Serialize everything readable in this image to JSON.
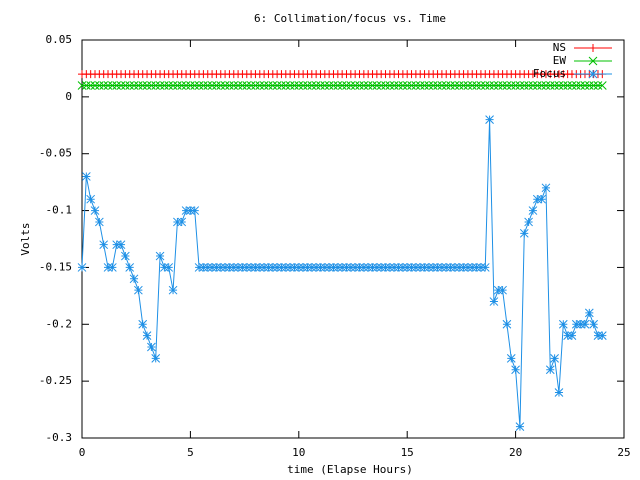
{
  "chart_data": {
    "type": "line",
    "title": "6: Collimation/focus vs. Time",
    "x_label": "time (Elapse Hours)",
    "y_label": "Volts",
    "xlim": [
      0,
      25
    ],
    "xticks": [
      0,
      5,
      10,
      15,
      20,
      25
    ],
    "ylim": [
      -0.3,
      0.05
    ],
    "yticks": [
      0.05,
      0,
      -0.05,
      -0.1,
      -0.15,
      -0.2,
      -0.25,
      -0.3
    ],
    "legend": "top-right",
    "x": [
      0,
      0.2,
      0.4,
      0.6,
      0.8,
      1,
      1.2,
      1.4,
      1.6,
      1.8,
      2,
      2.2,
      2.4,
      2.6,
      2.8,
      3,
      3.2,
      3.4,
      3.6,
      3.8,
      4,
      4.2,
      4.4,
      4.6,
      4.8,
      5,
      5.2,
      5.4,
      5.6,
      5.8,
      6,
      6.2,
      6.4,
      6.6,
      6.8,
      7,
      7.2,
      7.4,
      7.6,
      7.8,
      8,
      8.2,
      8.4,
      8.6,
      8.8,
      9,
      9.2,
      9.4,
      9.6,
      9.8,
      10,
      10.2,
      10.4,
      10.6,
      10.8,
      11,
      11.2,
      11.4,
      11.6,
      11.8,
      12,
      12.2,
      12.4,
      12.6,
      12.8,
      13,
      13.2,
      13.4,
      13.6,
      13.8,
      14,
      14.2,
      14.4,
      14.6,
      14.8,
      15,
      15.2,
      15.4,
      15.6,
      15.8,
      16,
      16.2,
      16.4,
      16.6,
      16.8,
      17,
      17.2,
      17.4,
      17.6,
      17.8,
      18,
      18.2,
      18.4,
      18.6,
      18.8,
      19,
      19.2,
      19.4,
      19.6,
      19.8,
      20,
      20.2,
      20.4,
      20.6,
      20.8,
      21,
      21.2,
      21.4,
      21.6,
      21.8,
      22,
      22.2,
      22.4,
      22.6,
      22.8,
      23,
      23.2,
      23.4,
      23.6,
      23.8,
      24
    ],
    "series": [
      {
        "name": "NS",
        "color": "#ff0000",
        "marker": "plus",
        "values": [
          0.02,
          0.02,
          0.02,
          0.02,
          0.02,
          0.02,
          0.02,
          0.02,
          0.02,
          0.02,
          0.02,
          0.02,
          0.02,
          0.02,
          0.02,
          0.02,
          0.02,
          0.02,
          0.02,
          0.02,
          0.02,
          0.02,
          0.02,
          0.02,
          0.02,
          0.02,
          0.02,
          0.02,
          0.02,
          0.02,
          0.02,
          0.02,
          0.02,
          0.02,
          0.02,
          0.02,
          0.02,
          0.02,
          0.02,
          0.02,
          0.02,
          0.02,
          0.02,
          0.02,
          0.02,
          0.02,
          0.02,
          0.02,
          0.02,
          0.02,
          0.02,
          0.02,
          0.02,
          0.02,
          0.02,
          0.02,
          0.02,
          0.02,
          0.02,
          0.02,
          0.02,
          0.02,
          0.02,
          0.02,
          0.02,
          0.02,
          0.02,
          0.02,
          0.02,
          0.02,
          0.02,
          0.02,
          0.02,
          0.02,
          0.02,
          0.02,
          0.02,
          0.02,
          0.02,
          0.02,
          0.02,
          0.02,
          0.02,
          0.02,
          0.02,
          0.02,
          0.02,
          0.02,
          0.02,
          0.02,
          0.02,
          0.02,
          0.02,
          0.02,
          0.02,
          0.02,
          0.02,
          0.02,
          0.02,
          0.02,
          0.02,
          0.02,
          0.02,
          0.02,
          0.02,
          0.02,
          0.02,
          0.02,
          0.02,
          0.02,
          0.02,
          0.02,
          0.02,
          0.02,
          0.02,
          0.02,
          0.02,
          0.02,
          0.02,
          0.02,
          0.02
        ]
      },
      {
        "name": "EW",
        "color": "#00c000",
        "marker": "cross",
        "values": [
          0.01,
          0.01,
          0.01,
          0.01,
          0.01,
          0.01,
          0.01,
          0.01,
          0.01,
          0.01,
          0.01,
          0.01,
          0.01,
          0.01,
          0.01,
          0.01,
          0.01,
          0.01,
          0.01,
          0.01,
          0.01,
          0.01,
          0.01,
          0.01,
          0.01,
          0.01,
          0.01,
          0.01,
          0.01,
          0.01,
          0.01,
          0.01,
          0.01,
          0.01,
          0.01,
          0.01,
          0.01,
          0.01,
          0.01,
          0.01,
          0.01,
          0.01,
          0.01,
          0.01,
          0.01,
          0.01,
          0.01,
          0.01,
          0.01,
          0.01,
          0.01,
          0.01,
          0.01,
          0.01,
          0.01,
          0.01,
          0.01,
          0.01,
          0.01,
          0.01,
          0.01,
          0.01,
          0.01,
          0.01,
          0.01,
          0.01,
          0.01,
          0.01,
          0.01,
          0.01,
          0.01,
          0.01,
          0.01,
          0.01,
          0.01,
          0.01,
          0.01,
          0.01,
          0.01,
          0.01,
          0.01,
          0.01,
          0.01,
          0.01,
          0.01,
          0.01,
          0.01,
          0.01,
          0.01,
          0.01,
          0.01,
          0.01,
          0.01,
          0.01,
          0.01,
          0.01,
          0.01,
          0.01,
          0.01,
          0.01,
          0.01,
          0.01,
          0.01,
          0.01,
          0.01,
          0.01,
          0.01,
          0.01,
          0.01,
          0.01,
          0.01,
          0.01,
          0.01,
          0.01,
          0.01,
          0.01,
          0.01,
          0.01,
          0.01,
          0.01,
          0.01
        ]
      },
      {
        "name": "Focus",
        "color": "#1e90e6",
        "marker": "star",
        "values": [
          -0.15,
          -0.07,
          -0.09,
          -0.1,
          -0.11,
          -0.13,
          -0.15,
          -0.15,
          -0.13,
          -0.13,
          -0.14,
          -0.15,
          -0.16,
          -0.17,
          -0.2,
          -0.21,
          -0.22,
          -0.23,
          -0.14,
          -0.15,
          -0.15,
          -0.17,
          -0.11,
          -0.11,
          -0.1,
          -0.1,
          -0.1,
          -0.15,
          -0.15,
          -0.15,
          -0.15,
          -0.15,
          -0.15,
          -0.15,
          -0.15,
          -0.15,
          -0.15,
          -0.15,
          -0.15,
          -0.15,
          -0.15,
          -0.15,
          -0.15,
          -0.15,
          -0.15,
          -0.15,
          -0.15,
          -0.15,
          -0.15,
          -0.15,
          -0.15,
          -0.15,
          -0.15,
          -0.15,
          -0.15,
          -0.15,
          -0.15,
          -0.15,
          -0.15,
          -0.15,
          -0.15,
          -0.15,
          -0.15,
          -0.15,
          -0.15,
          -0.15,
          -0.15,
          -0.15,
          -0.15,
          -0.15,
          -0.15,
          -0.15,
          -0.15,
          -0.15,
          -0.15,
          -0.15,
          -0.15,
          -0.15,
          -0.15,
          -0.15,
          -0.15,
          -0.15,
          -0.15,
          -0.15,
          -0.15,
          -0.15,
          -0.15,
          -0.15,
          -0.15,
          -0.15,
          -0.15,
          -0.15,
          -0.15,
          -0.15,
          -0.02,
          -0.18,
          -0.17,
          -0.17,
          -0.2,
          -0.23,
          -0.24,
          -0.29,
          -0.12,
          -0.11,
          -0.1,
          -0.09,
          -0.09,
          -0.08,
          -0.24,
          -0.23,
          -0.26,
          -0.2,
          -0.21,
          -0.21,
          -0.2,
          -0.2,
          -0.2,
          -0.19,
          -0.2,
          -0.21,
          -0.21
        ]
      }
    ]
  }
}
